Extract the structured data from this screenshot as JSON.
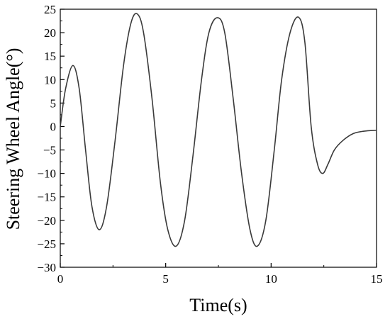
{
  "chart_data": {
    "type": "line",
    "title": "",
    "xlabel": "Time(s)",
    "ylabel": "Steering Wheel Angle(°)",
    "xlim": [
      0,
      15
    ],
    "ylim": [
      -30,
      25
    ],
    "xticks": [
      0,
      5,
      10,
      15
    ],
    "yticks": [
      -30,
      -25,
      -20,
      -15,
      -10,
      -5,
      0,
      5,
      10,
      15,
      20,
      25
    ],
    "grid": false,
    "legend": "none",
    "series": [
      {
        "line_color": "#3a3a3a",
        "x": [
          0,
          0.25,
          0.6,
          0.9,
          1.2,
          1.5,
          1.85,
          2.2,
          2.6,
          3.0,
          3.35,
          3.65,
          3.95,
          4.35,
          4.75,
          5.1,
          5.5,
          5.9,
          6.3,
          6.7,
          7.05,
          7.45,
          7.8,
          8.2,
          8.6,
          9.0,
          9.35,
          9.75,
          10.15,
          10.5,
          10.9,
          11.3,
          11.6,
          11.9,
          12.2,
          12.45,
          12.7,
          13.0,
          13.4,
          13.9,
          14.4,
          15.0
        ],
        "y": [
          0,
          8,
          13,
          8,
          -5,
          -17,
          -22,
          -17,
          -3,
          13,
          22,
          24,
          20,
          6,
          -12,
          -22,
          -25.5,
          -20,
          -6,
          10,
          20,
          23.2,
          20,
          6,
          -10,
          -22,
          -25.5,
          -20,
          -5,
          10,
          20,
          23.3,
          18,
          0,
          -8,
          -10,
          -8,
          -5,
          -3,
          -1.5,
          -1,
          -0.8
        ]
      }
    ]
  }
}
